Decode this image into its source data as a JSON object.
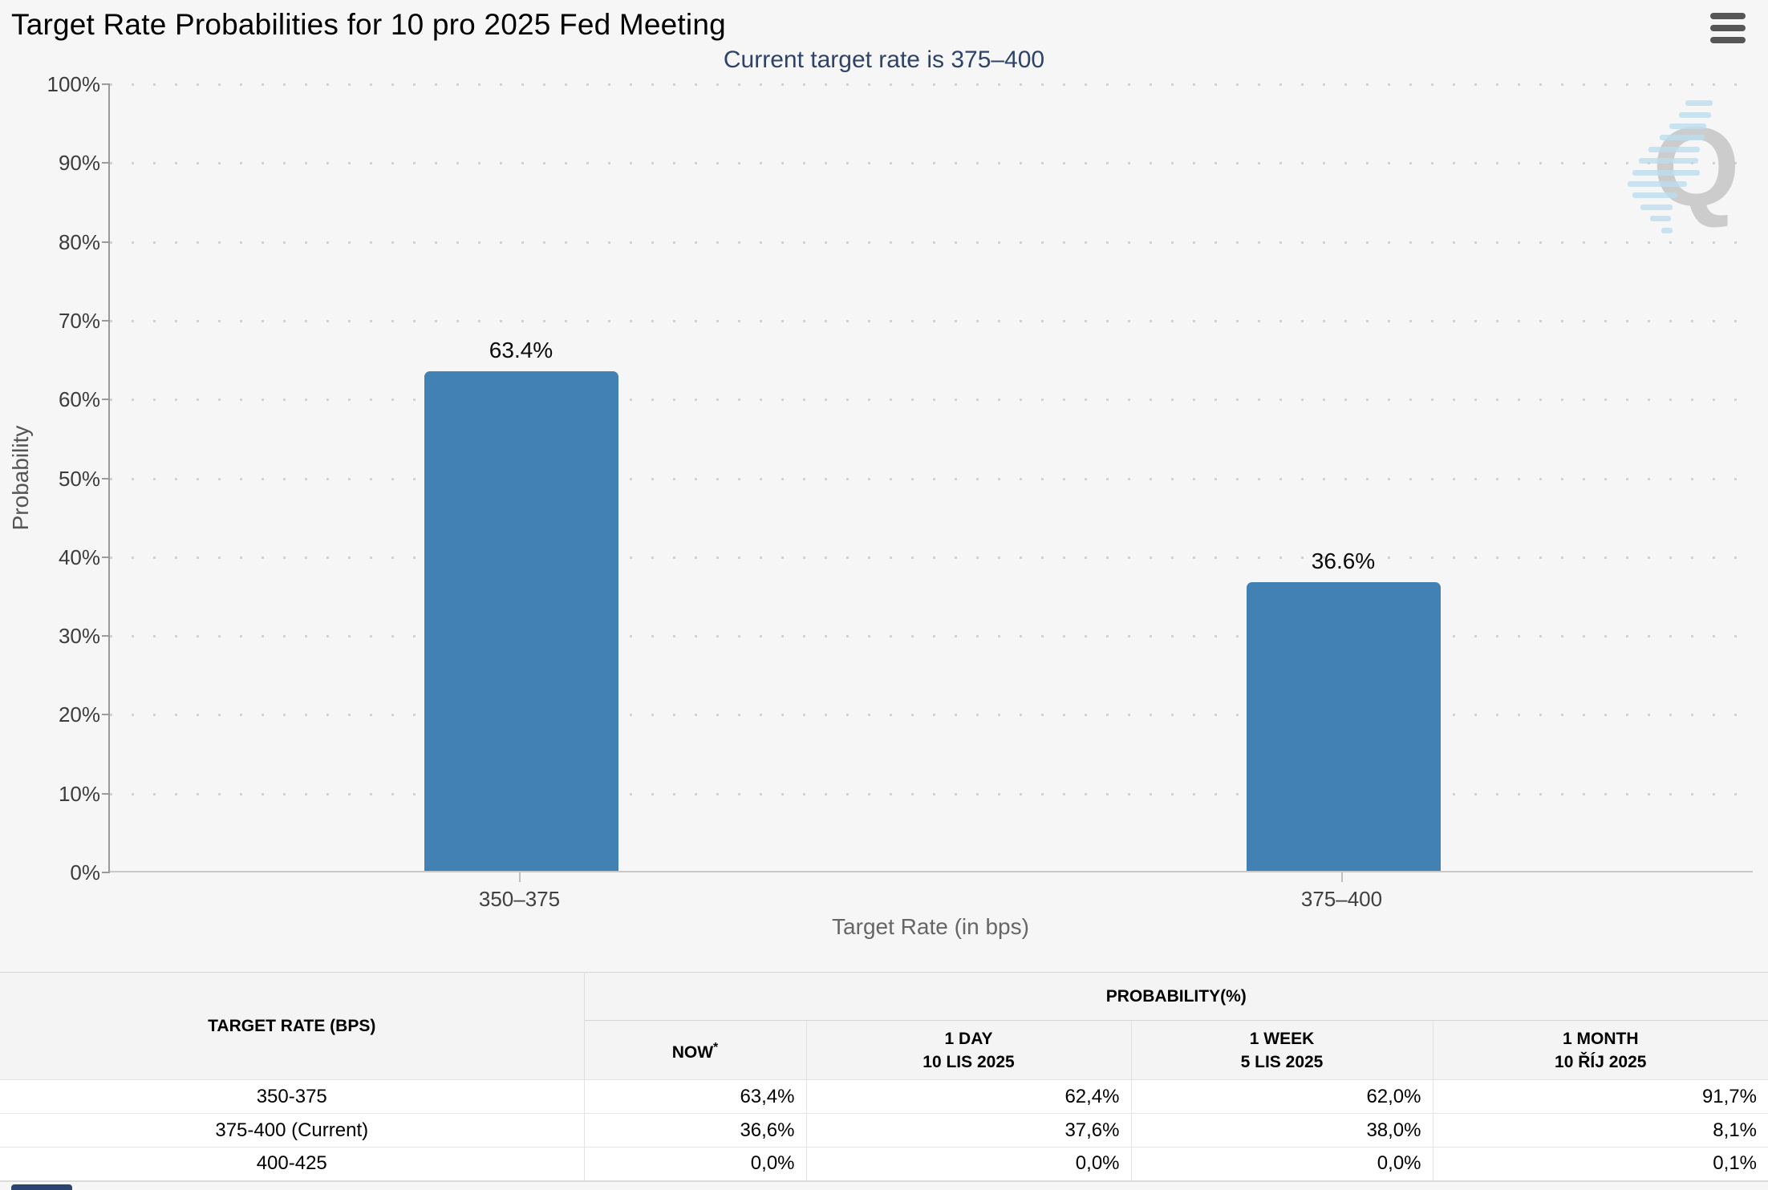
{
  "header": {
    "title": "Target Rate Probabilities for 10 pro 2025 Fed Meeting"
  },
  "chart": {
    "subtitle": "Current target rate is 375–400",
    "ylabel": "Probability",
    "xlabel": "Target Rate (in bps)",
    "watermark_letter": "Q",
    "bar_color": "#4281b4"
  },
  "chart_data": {
    "type": "bar",
    "title": "Target Rate Probabilities for 10 pro 2025 Fed Meeting",
    "subtitle": "Current target rate is 375–400",
    "categories": [
      "350–375",
      "375–400"
    ],
    "values": [
      63.4,
      36.6
    ],
    "data_labels": [
      "63.4%",
      "36.6%"
    ],
    "xlabel": "Target Rate (in bps)",
    "ylabel": "Probability",
    "ylim": [
      0,
      100
    ],
    "ytick_step": 10,
    "ytick_labels": [
      "0%",
      "10%",
      "20%",
      "30%",
      "40%",
      "50%",
      "60%",
      "70%",
      "80%",
      "90%",
      "100%"
    ],
    "grid": "dotted-horizontal",
    "legend": "none",
    "bar_color": "#4281b4"
  },
  "table": {
    "col1_header": "TARGET RATE (BPS)",
    "group_header": "PROBABILITY(%)",
    "now_header": "NOW",
    "now_asterisk": "*",
    "subheaders": [
      {
        "line1": "1 DAY",
        "line2": "10 LIS 2025"
      },
      {
        "line1": "1 WEEK",
        "line2": "5 LIS 2025"
      },
      {
        "line1": "1 MONTH",
        "line2": "10 ŘÍJ 2025"
      }
    ],
    "rows": [
      {
        "rate": "350-375",
        "now": "63,4%",
        "day": "62,4%",
        "week": "62,0%",
        "month": "91,7%"
      },
      {
        "rate": "375-400 (Current)",
        "now": "36,6%",
        "day": "37,6%",
        "week": "38,0%",
        "month": "8,1%"
      },
      {
        "rate": "400-425",
        "now": "0,0%",
        "day": "0,0%",
        "week": "0,0%",
        "month": "0,1%"
      }
    ]
  }
}
